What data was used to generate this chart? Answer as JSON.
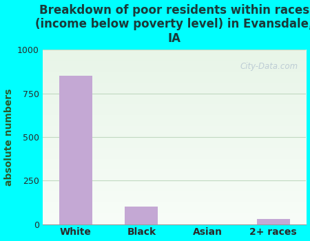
{
  "title": "Breakdown of poor residents within races\n(income below poverty level) in Evansdale,\nIA",
  "categories": [
    "White",
    "Black",
    "Asian",
    "2+ races"
  ],
  "values": [
    850,
    100,
    0,
    30
  ],
  "bar_color": "#c4a8d4",
  "ylabel": "absolute numbers",
  "ylim": [
    0,
    1000
  ],
  "yticks": [
    0,
    250,
    500,
    750,
    1000
  ],
  "background_outer": "#00ffff",
  "bg_top_color": "#e8f5e8",
  "bg_bottom_color": "#f8fdf8",
  "title_fontsize": 12,
  "title_color": "#1a3a3a",
  "axis_label_color": "#2a5a2a",
  "tick_color": "#2a2a2a",
  "watermark_text": "City-Data.com",
  "grid_color": "#c0d8c0",
  "grid_linewidth": 0.8,
  "bar_width": 0.5
}
